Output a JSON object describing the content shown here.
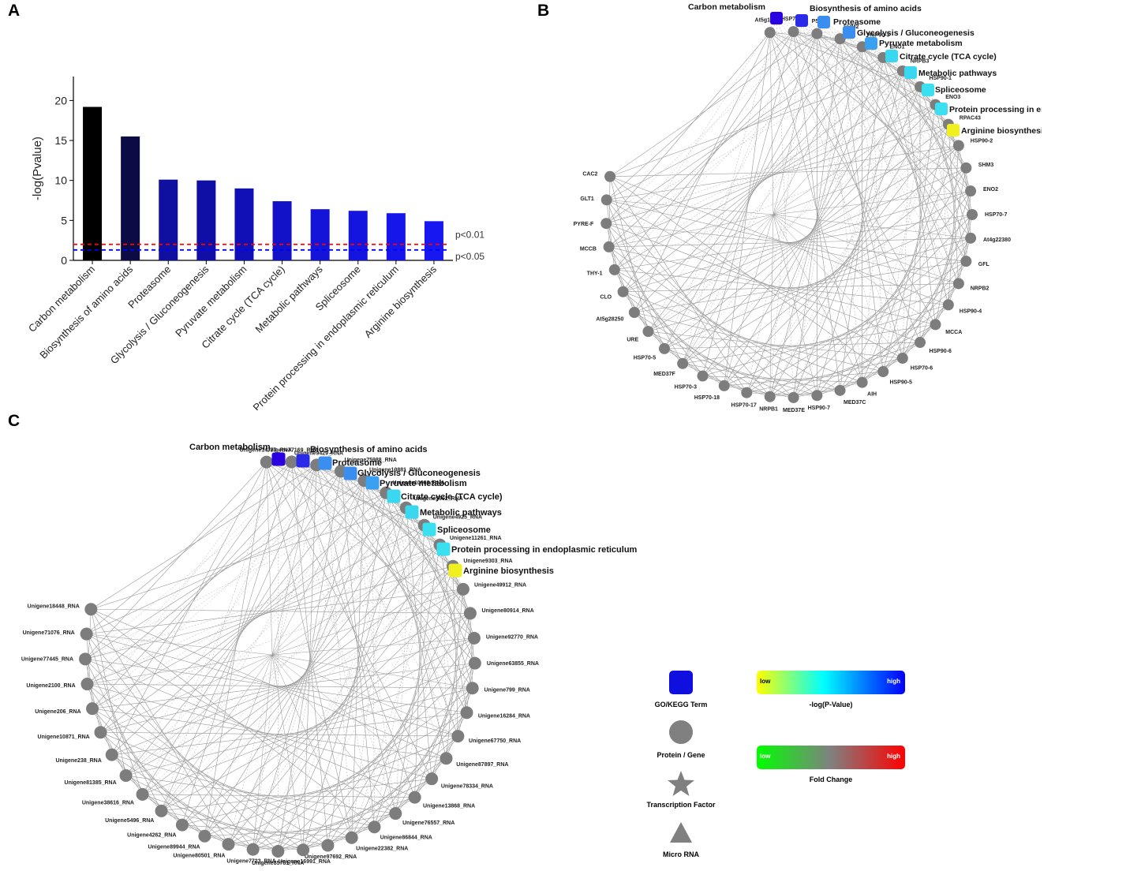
{
  "panels": {
    "a": "A",
    "b": "B",
    "c": "C"
  },
  "chart_data": {
    "type": "bar",
    "ylabel": "-log(Pvalue)",
    "ylim": [
      0,
      23
    ],
    "yticks": [
      0,
      5,
      10,
      15,
      20
    ],
    "categories": [
      "Carbon metabolism",
      "Biosynthesis of amino acids",
      "Proteasome",
      "Glycolysis / Gluconeogenesis",
      "Pyruvate metabolism",
      "Citrate cycle (TCA cycle)",
      "Metabolic pathways",
      "Spliceosome",
      "Protein processing in endoplasmic reticulum",
      "Arginine biosynthesis"
    ],
    "values": [
      19.2,
      15.5,
      10.1,
      10.0,
      9.0,
      7.4,
      6.4,
      6.2,
      5.9,
      4.9
    ],
    "colors": [
      "#000000",
      "#0b0b45",
      "#0f0fa0",
      "#0f0fa8",
      "#1010b8",
      "#1212c8",
      "#1414d8",
      "#1515e0",
      "#1616ea",
      "#1717f2"
    ],
    "thresholds": [
      {
        "label": "p<0.01",
        "value": 2.0,
        "color": "#ff0000"
      },
      {
        "label": "p<0.05",
        "value": 1.3,
        "color": "#0000ff"
      }
    ]
  },
  "terms": [
    {
      "label": "Carbon metabolism",
      "color": "#2a00e0"
    },
    {
      "label": "Biosynthesis of amino acids",
      "color": "#2a2ae8"
    },
    {
      "label": "Proteasome",
      "color": "#3a8ef0"
    },
    {
      "label": "Glycolysis / Gluconeogenesis",
      "color": "#3a8ef0"
    },
    {
      "label": "Pyruvate metabolism",
      "color": "#3aa0f0"
    },
    {
      "label": "Citrate cycle (TCA cycle)",
      "color": "#3ad8f0"
    },
    {
      "label": "Metabolic pathways",
      "color": "#3ad8f0"
    },
    {
      "label": "Spliceosome",
      "color": "#3ae0f0"
    },
    {
      "label": "Protein processing in endoplasmic reticulum",
      "color": "#3ae0f0"
    },
    {
      "label": "Arginine biosynthesis",
      "color": "#f0f020"
    }
  ],
  "network_b_genes": [
    "At5g15020",
    "HSP70-10",
    "P5CS",
    "SHM2",
    "HSP90-3",
    "ENO1",
    "NRPB3",
    "HSP90-1",
    "ENO3",
    "RPAC43",
    "HSP90-2",
    "SHM3",
    "ENO2",
    "HSP70-7",
    "At4g22380",
    "GFL",
    "NRPB2",
    "HSP90-4",
    "MCCA",
    "HSP90-6",
    "HSP70-6",
    "HSP90-5",
    "AIH",
    "MED37C",
    "HSP90-7",
    "MED37E",
    "NRPB1",
    "HSP70-17",
    "HSP70-18",
    "HSP70-3",
    "MED37F",
    "HSP70-5",
    "URE",
    "At5g28250",
    "CLO",
    "THY-1",
    "MCCB",
    "PYRE-F",
    "GLT1",
    "CAC2"
  ],
  "network_c_genes": [
    "Unigene14773_RNA",
    "Unigene77169_RNA",
    "Unigene9429_RNA",
    "Unigene75988_RNA",
    "Unigene10881_RNA",
    "Unigene10606_RNA",
    "Unigene5662_RNA",
    "Unigene4925_RNA",
    "Unigene11261_RNA",
    "Unigene9303_RNA",
    "Unigene49912_RNA",
    "Unigene80914_RNA",
    "Unigene92770_RNA",
    "Unigene63855_RNA",
    "Unigene799_RNA",
    "Unigene16284_RNA",
    "Unigene67750_RNA",
    "Unigene87897_RNA",
    "Unigene78334_RNA",
    "Unigene13868_RNA",
    "Unigene76557_RNA",
    "Unigene86844_RNA",
    "Unigene22382_RNA",
    "Unigene97692_RNA",
    "Unigene16991_RNA",
    "Unigene85781_RNA",
    "Unigene7723_RNA",
    "Unigene80501_RNA",
    "Unigene89944_RNA",
    "Unigene4262_RNA",
    "Unigene5496_RNA",
    "Unigene38616_RNA",
    "Unigene81385_RNA",
    "Unigene238_RNA",
    "Unigene10871_RNA",
    "Unigene206_RNA",
    "Unigene2100_RNA",
    "Unigene77445_RNA",
    "Unigene71076_RNA",
    "Unigene18448_RNA"
  ],
  "legend": {
    "term": "GO/KEGG Term",
    "gene": "Protein / Gene",
    "tf": "Transcription Factor",
    "mirna": "Micro RNA",
    "low": "low",
    "high": "high",
    "pvalue": "-log(P-Value)",
    "fold": "Fold Change",
    "term_color": "#0f0fe0",
    "node_color": "#808080"
  }
}
